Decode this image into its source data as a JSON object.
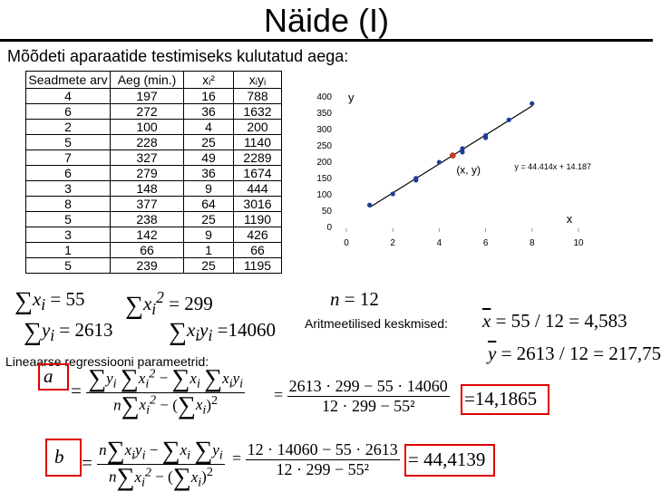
{
  "slide": {
    "title": "Näide (I)",
    "intro": "Mõõdeti aparaatide testimiseks kulutatud aega:"
  },
  "table": {
    "headers": [
      "Seadmete arv",
      "Aeg (min.)",
      "xᵢ²",
      "xᵢyᵢ"
    ],
    "rows": [
      [
        "4",
        "197",
        "16",
        "788"
      ],
      [
        "6",
        "272",
        "36",
        "1632"
      ],
      [
        "2",
        "100",
        "4",
        "200"
      ],
      [
        "5",
        "228",
        "25",
        "1140"
      ],
      [
        "7",
        "327",
        "49",
        "2289"
      ],
      [
        "6",
        "279",
        "36",
        "1674"
      ],
      [
        "3",
        "148",
        "9",
        "444"
      ],
      [
        "8",
        "377",
        "64",
        "3016"
      ],
      [
        "5",
        "238",
        "25",
        "1190"
      ],
      [
        "3",
        "142",
        "9",
        "426"
      ],
      [
        "1",
        "66",
        "1",
        "66"
      ],
      [
        "5",
        "239",
        "25",
        "1195"
      ]
    ]
  },
  "chart_data": {
    "type": "scatter",
    "x": [
      4,
      6,
      2,
      5,
      7,
      6,
      3,
      8,
      5,
      3,
      1,
      5
    ],
    "y": [
      197,
      272,
      100,
      228,
      327,
      279,
      148,
      377,
      238,
      142,
      66,
      239
    ],
    "mean_point": {
      "x": 4.583,
      "y": 217.75,
      "label": "(x, y)"
    },
    "trendline": {
      "slope": 44.414,
      "intercept": 14.187,
      "label": "y = 44.414x + 14.187"
    },
    "xlabel": "x",
    "ylabel": "y",
    "xlim": [
      0,
      10
    ],
    "ylim": [
      0,
      400
    ],
    "xticks": [
      "0",
      "2",
      "4",
      "6",
      "8",
      "10"
    ],
    "yticks": [
      "0",
      "50",
      "100",
      "150",
      "200",
      "250",
      "300",
      "350",
      "400"
    ],
    "colors": {
      "points": "#1f3d99",
      "trendline": "#000000",
      "mean_point": "#c0392b"
    },
    "grid": false
  },
  "formulas": {
    "sum_x": "55",
    "sum_x2": "= 299",
    "sum_y": "= 2613",
    "sum_xy": "=14060",
    "n": "12",
    "means_label": "Aritmeetilised keskmised:",
    "mean_x": "= 55 / 12 = 4,583",
    "mean_y": "= 2613 / 12 = 217,75",
    "regression_label": "Lineaarse regressiooni parameetrid:",
    "a_numerator": "2613 · 299 − 55 · 14060",
    "a_denominator": "12 · 299 − 55²",
    "a_result": "=14,1865",
    "b_numerator": "12 · 14060 − 55 · 2613",
    "b_denominator": "12 · 299 − 55²",
    "b_result": "= 44,4139",
    "accent_color": "#e00000"
  }
}
